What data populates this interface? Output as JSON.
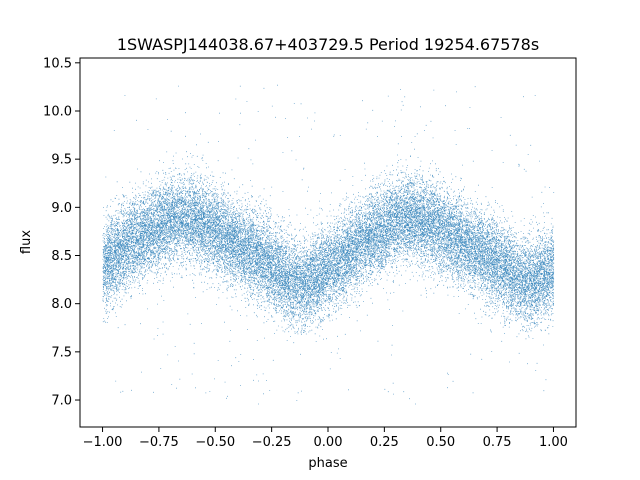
{
  "chart_data": {
    "type": "scatter",
    "title": "1SWASPJ144038.67+403729.5 Period 19254.67578s",
    "xlabel": "phase",
    "ylabel": "flux",
    "xlim": [
      -1.1,
      1.1
    ],
    "ylim": [
      6.72,
      10.55
    ],
    "x_ticks": [
      -1.0,
      -0.75,
      -0.5,
      -0.25,
      0.0,
      0.25,
      0.5,
      0.75,
      1.0
    ],
    "x_tick_labels": [
      "−1.00",
      "−0.75",
      "−0.50",
      "−0.25",
      "0.00",
      "0.25",
      "0.50",
      "0.75",
      "1.00"
    ],
    "y_ticks": [
      7.0,
      7.5,
      8.0,
      8.5,
      9.0,
      9.5,
      10.0,
      10.5
    ],
    "y_tick_labels": [
      "7.0",
      "7.5",
      "8.0",
      "8.5",
      "9.0",
      "9.5",
      "10.0",
      "10.5"
    ],
    "grid": false,
    "legend": "none",
    "marker_color": "#1f77b4",
    "series": [
      {
        "x": [
          -1.0,
          -0.9,
          -0.8,
          -0.7,
          -0.65,
          -0.6,
          -0.5,
          -0.4,
          -0.3,
          -0.2,
          -0.15,
          -0.1,
          0.0,
          0.1,
          0.2,
          0.3,
          0.35,
          0.4,
          0.5,
          0.6,
          0.7,
          0.8,
          0.85,
          0.9,
          1.0
        ],
        "y": [
          8.4,
          8.6,
          8.75,
          8.85,
          8.9,
          8.87,
          8.75,
          8.6,
          8.48,
          8.3,
          8.22,
          8.2,
          8.35,
          8.55,
          8.72,
          8.85,
          8.9,
          8.88,
          8.78,
          8.62,
          8.5,
          8.33,
          8.25,
          8.22,
          8.35
        ]
      }
    ],
    "scatter_spread": 0.22,
    "outlier_range": [
      6.95,
      10.3
    ],
    "point_count": 30000
  }
}
